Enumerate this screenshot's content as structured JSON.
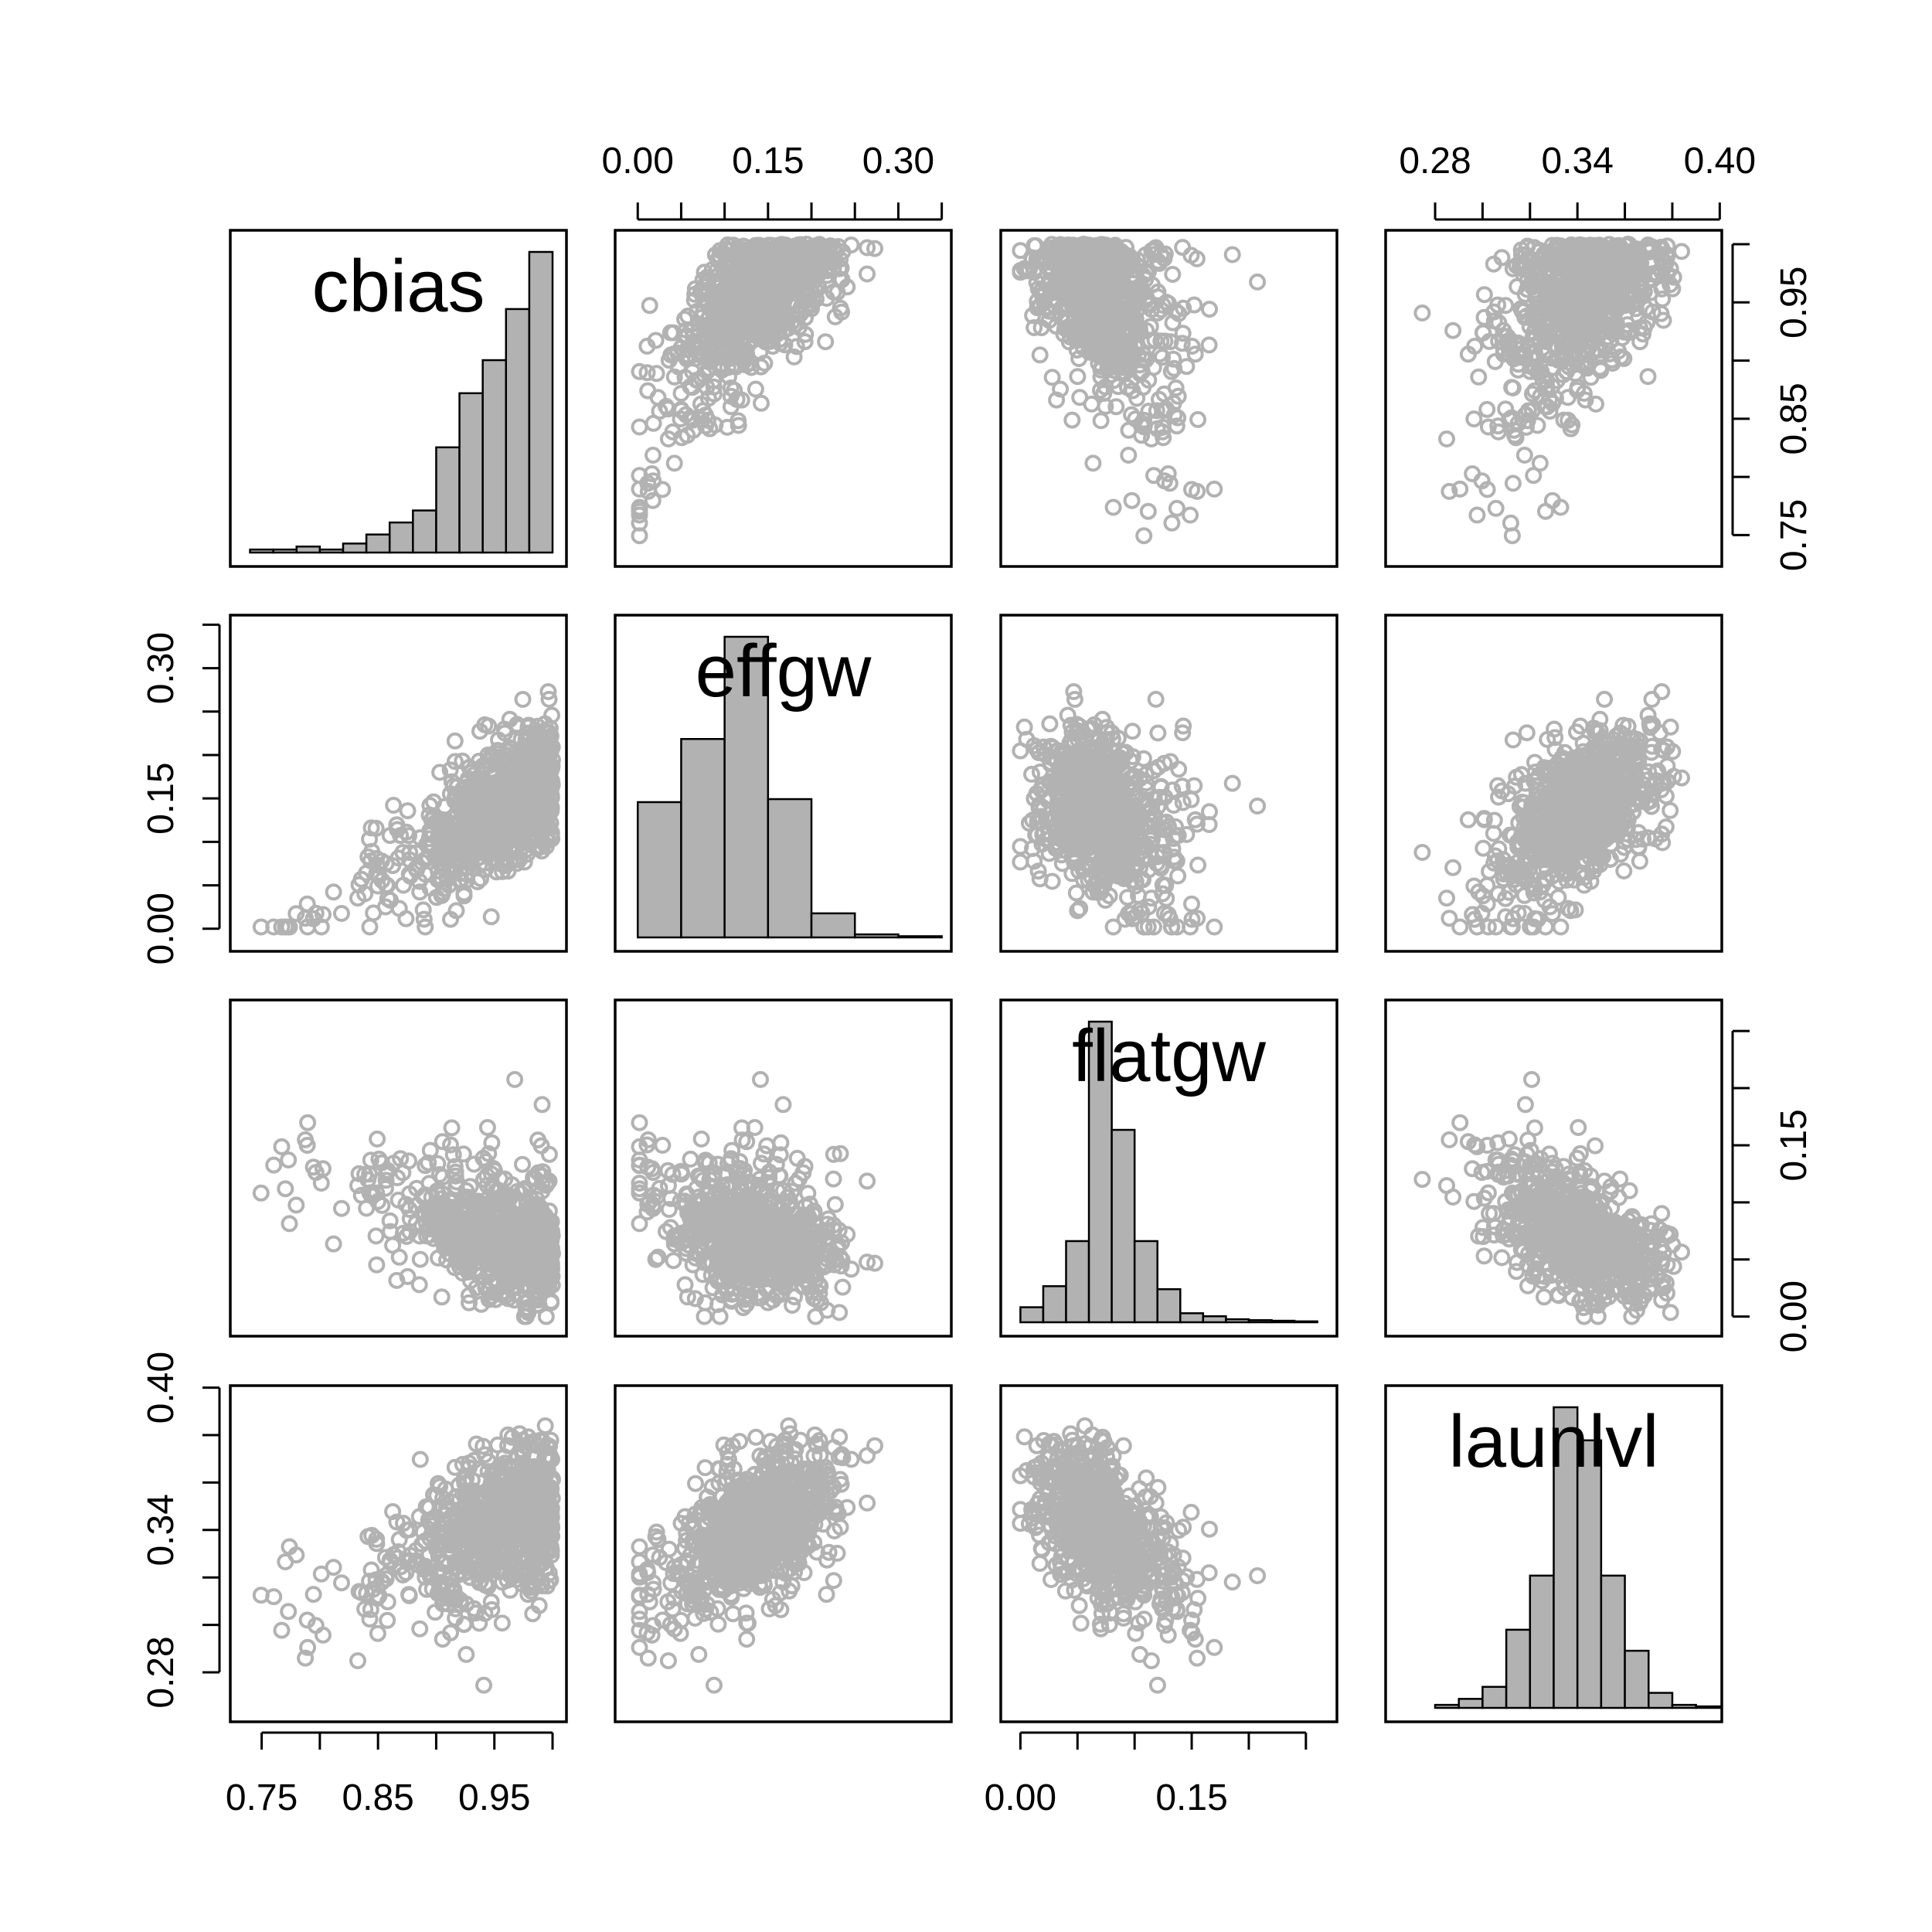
{
  "chart_data": {
    "type": "scatter",
    "kind": "pairs-matrix",
    "variables": [
      "cbias",
      "effgw",
      "flatgw",
      "launlvl"
    ],
    "ranges": {
      "cbias": [
        0.735,
        1.0
      ],
      "effgw": [
        -0.01,
        0.345
      ],
      "flatgw": [
        -0.005,
        0.265
      ],
      "launlvl": [
        0.265,
        0.395
      ]
    },
    "axis_ticks": {
      "cbias": [
        "0.75",
        "0.85",
        "0.95"
      ],
      "effgw": [
        "0.00",
        "0.15",
        "0.30"
      ],
      "flatgw": [
        "0.00",
        "0.15"
      ],
      "launlvl": [
        "0.28",
        "0.34",
        "0.40"
      ]
    },
    "axis_tick_values": {
      "cbias": [
        0.75,
        0.8,
        0.85,
        0.9,
        0.95,
        1.0
      ],
      "effgw": [
        0.0,
        0.05,
        0.1,
        0.15,
        0.2,
        0.25,
        0.3,
        0.35
      ],
      "flatgw": [
        0.0,
        0.05,
        0.1,
        0.15,
        0.2,
        0.25
      ],
      "launlvl": [
        0.28,
        0.3,
        0.32,
        0.34,
        0.36,
        0.38,
        0.4
      ]
    },
    "histograms": {
      "cbias": {
        "bins": [
          0.74,
          0.76,
          0.78,
          0.8,
          0.82,
          0.84,
          0.86,
          0.88,
          0.9,
          0.92,
          0.94,
          0.96,
          0.98,
          1.0
        ],
        "counts": [
          1,
          1,
          2,
          1,
          3,
          6,
          10,
          14,
          35,
          53,
          64,
          81,
          100
        ]
      },
      "effgw": {
        "bins": [
          0.0,
          0.05,
          0.1,
          0.15,
          0.2,
          0.25,
          0.3,
          0.35
        ],
        "counts": [
          45,
          66,
          100,
          46,
          8,
          1,
          0.4
        ]
      },
      "flatgw": {
        "bins": [
          0.0,
          0.02,
          0.04,
          0.06,
          0.08,
          0.1,
          0.12,
          0.14,
          0.16,
          0.18,
          0.2,
          0.22,
          0.24,
          0.26
        ],
        "counts": [
          5,
          12,
          27,
          100,
          64,
          27,
          11,
          3,
          2,
          1,
          0.7,
          0.5,
          0.3
        ]
      },
      "launlvl": {
        "bins": [
          0.28,
          0.29,
          0.3,
          0.31,
          0.32,
          0.33,
          0.34,
          0.35,
          0.36,
          0.37,
          0.38,
          0.39,
          0.4
        ],
        "counts": [
          1,
          3,
          7,
          26,
          44,
          100,
          89,
          44,
          19,
          5,
          1,
          0.5
        ]
      }
    },
    "grid": false,
    "legend": "none",
    "colors": {
      "points": "#b2b2b2",
      "bars": "#b2b2b2",
      "lines": "#000000"
    }
  }
}
